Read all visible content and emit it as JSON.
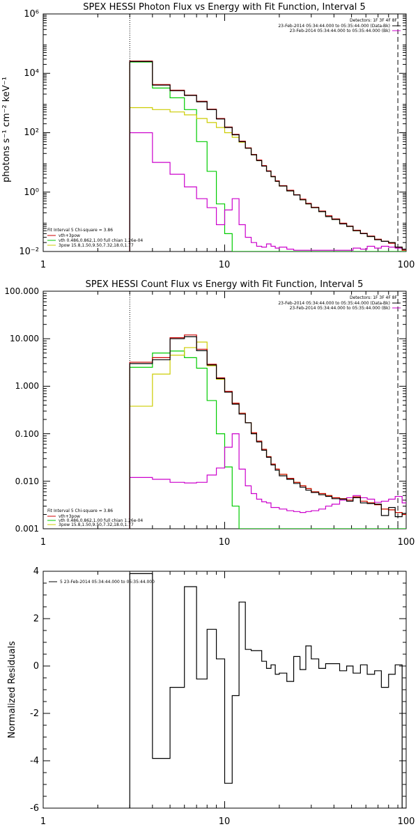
{
  "chart_data": [
    {
      "type": "line",
      "title": "SPEX HESSI Photon Flux vs Energy with Fit Function, Interval 5",
      "xlabel": "",
      "ylabel": "photons s⁻¹ cm⁻² keV⁻¹",
      "xscale": "log",
      "yscale": "log",
      "xlim": [
        1,
        100
      ],
      "ylim": [
        0.01,
        1000000
      ],
      "y_ticks": [
        0.01,
        1,
        100,
        10000,
        1000000
      ],
      "y_tick_labels": [
        "10⁻²",
        "10⁰",
        "10²",
        "10⁴",
        "10⁶"
      ],
      "x_ticks": [
        1,
        10,
        100
      ],
      "x_tick_labels": [
        "1",
        "10",
        "100"
      ],
      "vlines": [
        {
          "x": 3,
          "style": "dotted"
        },
        {
          "x": 90,
          "style": "dashed"
        }
      ],
      "legend_tr": [
        "Detectors: 1F 3F 4F 8F",
        "23-Feb-2014 05:34:44.000 to 05:35:44.000 (Data-Bk)",
        "23-Feb-2014 05:34:44.000 to 05:35:44.000 (Bk)"
      ],
      "legend_bl": [
        "Fit Interval 5   Chi-square = 3.86",
        "vth+3pow",
        "vth 0.486,0.862,1.00  full chian 1.26e-04",
        "3pow 15.8,1.50,9.50,7.32,18.0,1.77"
      ],
      "legend_bl_colors": [
        "#000000",
        "#cc0000",
        "#00cc00",
        "#cccc00"
      ],
      "edges": [
        3,
        4,
        5,
        6,
        7,
        8,
        9,
        10,
        11,
        12,
        13,
        14,
        15,
        16,
        17,
        18,
        19,
        20,
        22,
        24,
        26,
        28,
        30,
        33,
        36,
        39,
        43,
        47,
        51,
        56,
        61,
        67,
        73,
        80,
        87,
        95,
        100
      ],
      "series": [
        {
          "name": "",
          "color": "#000000",
          "values": [
            25000,
            4000,
            2600,
            1800,
            1100,
            600,
            290,
            150,
            85,
            50,
            30,
            18,
            11.5,
            7.5,
            5,
            3.3,
            2.3,
            1.6,
            1.1,
            0.8,
            0.55,
            0.4,
            0.3,
            0.22,
            0.15,
            0.12,
            0.085,
            0.07,
            0.05,
            0.04,
            0.032,
            0.025,
            0.022,
            0.02,
            0.014,
            0.012
          ]
        },
        {
          "name": "",
          "color": "#cc0000",
          "values": [
            26000,
            4200,
            2700,
            1850,
            1150,
            620,
            300,
            155,
            88,
            52,
            31,
            18.5,
            12,
            7.8,
            5.2,
            3.4,
            2.4,
            1.65,
            1.15,
            0.82,
            0.58,
            0.42,
            0.31,
            0.23,
            0.16,
            0.125,
            0.09,
            0.072,
            0.052,
            0.041,
            0.033,
            0.026,
            0.022,
            0.019,
            0.014,
            0.011
          ]
        },
        {
          "name": "",
          "color": "#00cc00",
          "values": [
            24000,
            3200,
            1500,
            600,
            50,
            5,
            0.4,
            0.04,
            0.01,
            0.01,
            0.01,
            0.01,
            0.01,
            0.01,
            0.01,
            0.01,
            0.01,
            0.01,
            0.01,
            0.01,
            0.01,
            0.01,
            0.01,
            0.01,
            0.01,
            0.01,
            0.01,
            0.01,
            0.01,
            0.01,
            0.01,
            0.01,
            0.01,
            0.01,
            0.01,
            0.01
          ]
        },
        {
          "name": "",
          "color": "#cccc00",
          "values": [
            700,
            600,
            500,
            400,
            300,
            220,
            150,
            100,
            70,
            48,
            30,
            18,
            11.5,
            7.5,
            5,
            3.3,
            2.3,
            1.6,
            1.1,
            0.8,
            0.55,
            0.4,
            0.3,
            0.22,
            0.15,
            0.12,
            0.085,
            0.07,
            0.05,
            0.04,
            0.032,
            0.025,
            0.022,
            0.02,
            0.014,
            0.012
          ]
        },
        {
          "name": "",
          "color": "#cc00cc",
          "values": [
            100,
            10,
            4,
            1.5,
            0.6,
            0.3,
            0.08,
            0.25,
            0.6,
            0.08,
            0.03,
            0.02,
            0.015,
            0.014,
            0.018,
            0.015,
            0.013,
            0.014,
            0.012,
            0.011,
            0.011,
            0.011,
            0.011,
            0.011,
            0.011,
            0.011,
            0.011,
            0.011,
            0.013,
            0.012,
            0.015,
            0.013,
            0.015,
            0.014,
            0.013,
            0.012
          ]
        }
      ]
    },
    {
      "type": "line",
      "title": "SPEX HESSI Count Flux vs Energy with Fit Function, Interval 5",
      "xlabel": "",
      "ylabel": "",
      "xscale": "log",
      "yscale": "log",
      "xlim": [
        1,
        100
      ],
      "ylim": [
        0.001,
        100
      ],
      "y_ticks": [
        0.001,
        0.01,
        0.1,
        1,
        10,
        100
      ],
      "y_tick_labels": [
        "0.001",
        "0.010",
        "0.100",
        "1.000",
        "10.000",
        "100.000"
      ],
      "x_ticks": [
        1,
        10,
        100
      ],
      "x_tick_labels": [
        "1",
        "10",
        "100"
      ],
      "vlines": [
        {
          "x": 3,
          "style": "dotted"
        },
        {
          "x": 90,
          "style": "dashed"
        }
      ],
      "legend_tr": [
        "Detectors: 1F 3F 4F 8F",
        "23-Feb-2014 05:34:44.000 to 05:35:44.000 (Data-Bk)",
        "23-Feb-2014 05:34:44.000 to 05:35:44.000 (Bk)"
      ],
      "legend_bl": [
        "Fit Interval 5   Chi-square = 3.86",
        "vth+3pow",
        "vth 0.486,0.862,1.00  full chian 1.26e-04",
        "3pow 15.8,1.50,9.50,7.32,18.0,1.77"
      ],
      "legend_bl_colors": [
        "#000000",
        "#cc0000",
        "#00cc00",
        "#cccc00"
      ],
      "edges": [
        3,
        4,
        5,
        6,
        7,
        8,
        9,
        10,
        11,
        12,
        13,
        14,
        15,
        16,
        17,
        18,
        19,
        20,
        22,
        24,
        26,
        28,
        30,
        33,
        36,
        39,
        43,
        47,
        51,
        56,
        61,
        67,
        73,
        80,
        87,
        95,
        100
      ],
      "series": [
        {
          "name": "",
          "color": "#000000",
          "values": [
            3.0,
            3.6,
            10.0,
            11.0,
            5.6,
            2.8,
            1.45,
            0.75,
            0.42,
            0.26,
            0.17,
            0.1,
            0.067,
            0.045,
            0.032,
            0.022,
            0.017,
            0.013,
            0.011,
            0.009,
            0.0075,
            0.0065,
            0.0058,
            0.0052,
            0.0048,
            0.0043,
            0.0042,
            0.0038,
            0.0045,
            0.0035,
            0.0034,
            0.0033,
            0.0019,
            0.0028,
            0.0018,
            0.0021
          ]
        },
        {
          "name": "",
          "color": "#cc0000",
          "values": [
            3.2,
            4.0,
            10.5,
            12.0,
            6.0,
            2.9,
            1.5,
            0.78,
            0.44,
            0.27,
            0.17,
            0.105,
            0.07,
            0.047,
            0.033,
            0.023,
            0.018,
            0.014,
            0.0115,
            0.0095,
            0.008,
            0.007,
            0.006,
            0.0055,
            0.005,
            0.0045,
            0.0043,
            0.004,
            0.0047,
            0.0038,
            0.0035,
            0.0032,
            0.0026,
            0.0025,
            0.0022,
            0.002
          ]
        },
        {
          "name": "",
          "color": "#00cc00",
          "values": [
            2.5,
            5.0,
            5.5,
            4.0,
            2.4,
            0.5,
            0.1,
            0.02,
            0.003,
            0.001,
            0.001,
            0.001,
            0.001,
            0.001,
            0.001,
            0.001,
            0.001,
            0.001,
            0.001,
            0.001,
            0.001,
            0.001,
            0.001,
            0.001,
            0.001,
            0.001,
            0.001,
            0.001,
            0.001,
            0.001,
            0.001,
            0.001,
            0.001,
            0.001,
            0.001,
            0.001
          ]
        },
        {
          "name": "",
          "color": "#cccc00",
          "values": [
            0.38,
            1.8,
            4.5,
            6.5,
            8.5,
            2.7,
            1.4,
            0.75,
            0.44,
            0.27,
            0.17,
            0.105,
            0.07,
            0.047,
            0.033,
            0.023,
            0.018,
            0.014,
            0.0115,
            0.0095,
            0.008,
            0.007,
            0.006,
            0.0055,
            0.005,
            0.0045,
            0.0043,
            0.004,
            0.0047,
            0.0038,
            0.0035,
            0.0032,
            0.0026,
            0.0025,
            0.0022,
            0.002
          ]
        },
        {
          "name": "",
          "color": "#cc00cc",
          "values": [
            0.012,
            0.011,
            0.0095,
            0.0092,
            0.0095,
            0.0135,
            0.019,
            0.052,
            0.1,
            0.018,
            0.008,
            0.0055,
            0.0042,
            0.0037,
            0.0035,
            0.0028,
            0.0028,
            0.0026,
            0.0024,
            0.0023,
            0.0022,
            0.0023,
            0.0024,
            0.0026,
            0.003,
            0.0033,
            0.004,
            0.0045,
            0.005,
            0.0045,
            0.0042,
            0.0036,
            0.0038,
            0.0042,
            0.0048,
            0.0035
          ]
        }
      ]
    },
    {
      "type": "line",
      "title": "",
      "xlabel": "",
      "ylabel": "Normalized Residuals",
      "xscale": "log",
      "yscale": "linear",
      "xlim": [
        1,
        100
      ],
      "ylim": [
        -6,
        4
      ],
      "y_ticks": [
        -6,
        -4,
        -2,
        0,
        2,
        4
      ],
      "y_tick_labels": [
        "-6",
        "-4",
        "-2",
        "0",
        "2",
        "4"
      ],
      "x_ticks": [
        1,
        10,
        100
      ],
      "x_tick_labels": [
        "1",
        "10",
        "100"
      ],
      "vlines": [],
      "legend_tr": [],
      "legend_bl": [],
      "legend_bl_colors": [],
      "annotation": "5  23-Feb-2014 05:34:44.000 to 05:35:44.000",
      "edges": [
        3,
        4,
        5,
        6,
        7,
        8,
        9,
        10,
        11,
        12,
        13,
        14,
        15,
        16,
        17,
        18,
        19,
        20,
        22,
        24,
        26,
        28,
        30,
        33,
        36,
        39,
        43,
        47,
        51,
        56,
        61,
        67,
        73,
        80,
        87,
        95,
        100
      ],
      "series": [
        {
          "name": "",
          "color": "#000000",
          "values": [
            3.9,
            -3.9,
            -0.9,
            3.35,
            -0.55,
            1.55,
            0.3,
            -4.95,
            -1.25,
            2.7,
            0.7,
            0.65,
            0.65,
            0.2,
            -0.1,
            0.05,
            -0.35,
            -0.3,
            -0.65,
            0.4,
            -0.15,
            0.85,
            0.3,
            -0.1,
            0.1,
            0.1,
            -0.2,
            0.0,
            -0.3,
            0.05,
            -0.35,
            -0.2,
            -0.9,
            -0.35,
            0.05,
            -6.0
          ]
        }
      ]
    }
  ]
}
